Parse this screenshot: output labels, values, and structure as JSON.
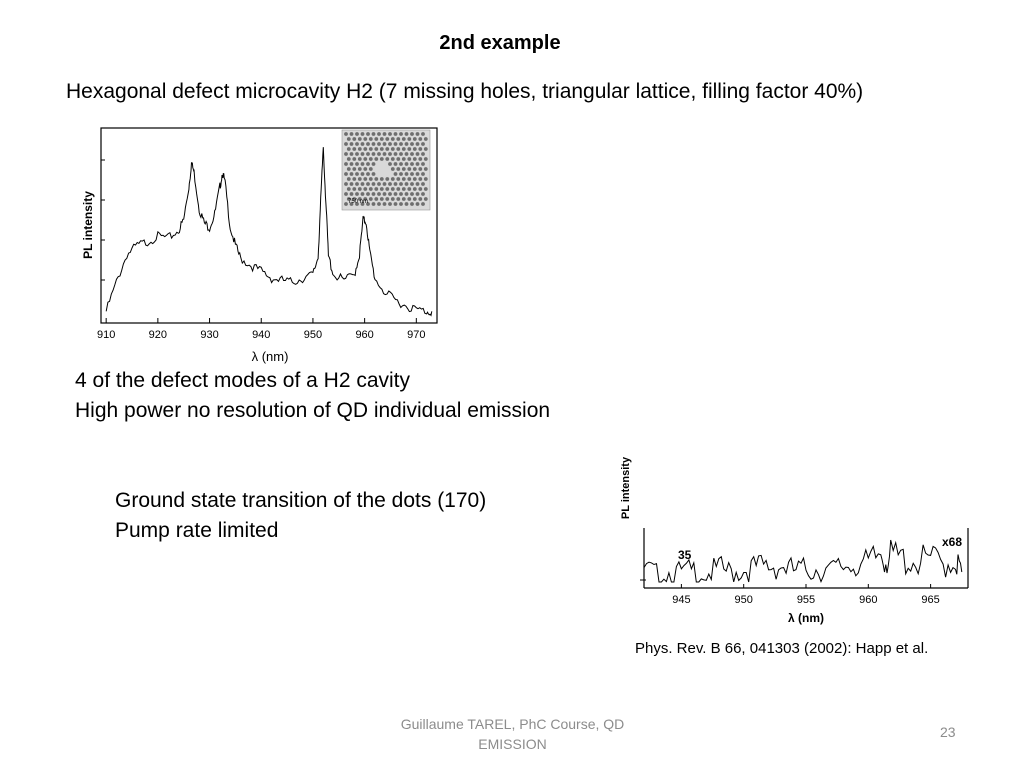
{
  "slide": {
    "title": "2nd example",
    "subtitle": "Hexagonal defect microcavity H2 (7 missing holes, triangular lattice, filling factor 40%)",
    "bullets_group1": [
      "4 of the defect modes of a H2 cavity",
      "High power no resolution of QD individual emission"
    ],
    "bullets_group2": [
      "Ground state transition of the dots (170)",
      "Pump rate limited"
    ],
    "reference": "Phys. Rev. B 66, 041303 (2002): Happ et al.",
    "footer": "Guillaume TAREL, PhC Course, QD EMISSION",
    "page_number": "23"
  },
  "chart_data": [
    {
      "type": "line",
      "title": "",
      "xlabel": "λ (nm)",
      "ylabel": "PL intensity",
      "xlim": [
        909,
        974
      ],
      "ylim": [
        0,
        1
      ],
      "xticks": [
        910,
        920,
        930,
        940,
        950,
        960,
        970
      ],
      "grid": false,
      "inset": {
        "scale_label": "750 nm"
      },
      "series": [
        {
          "x": [
            910,
            912,
            914,
            916,
            918,
            920,
            922,
            924,
            925,
            926,
            926.5,
            927,
            928,
            929,
            930,
            931,
            932,
            932.5,
            933,
            934,
            935,
            936,
            938,
            940,
            942,
            944,
            946,
            948,
            950,
            951,
            951.5,
            952,
            952.5,
            953,
            954,
            956,
            958,
            959,
            959.7,
            960.3,
            961,
            962,
            964,
            966,
            968,
            970,
            972,
            973
          ],
          "y": [
            0.02,
            0.18,
            0.33,
            0.38,
            0.4,
            0.43,
            0.42,
            0.46,
            0.52,
            0.7,
            0.83,
            0.78,
            0.58,
            0.5,
            0.48,
            0.55,
            0.7,
            0.78,
            0.72,
            0.48,
            0.38,
            0.31,
            0.27,
            0.24,
            0.2,
            0.19,
            0.18,
            0.2,
            0.22,
            0.32,
            0.62,
            0.92,
            0.62,
            0.32,
            0.22,
            0.19,
            0.22,
            0.33,
            0.52,
            0.51,
            0.34,
            0.2,
            0.12,
            0.08,
            0.05,
            0.03,
            0.02,
            0.02
          ]
        }
      ]
    },
    {
      "type": "line",
      "title": "",
      "xlabel": "λ (nm)",
      "ylabel": "PL intensity",
      "xlim": [
        942,
        968
      ],
      "ylim": [
        0,
        1
      ],
      "xticks": [
        945,
        950,
        955,
        960,
        965
      ],
      "grid": false,
      "annotations": [
        "35",
        "x68"
      ],
      "series": [
        {
          "x": [
            942,
            943,
            944,
            945,
            946,
            947,
            948,
            949,
            950,
            951,
            952,
            953,
            954,
            955,
            956,
            957,
            958,
            959,
            960,
            961,
            961.5,
            962,
            963,
            964,
            965,
            966,
            967,
            967.5
          ],
          "y": [
            0.25,
            0.15,
            0.2,
            0.18,
            0.22,
            0.16,
            0.26,
            0.19,
            0.24,
            0.29,
            0.31,
            0.33,
            0.22,
            0.25,
            0.27,
            0.21,
            0.33,
            0.38,
            0.34,
            0.58,
            0.46,
            0.52,
            0.44,
            0.4,
            0.46,
            0.36,
            0.42,
            0.2
          ]
        }
      ]
    }
  ]
}
